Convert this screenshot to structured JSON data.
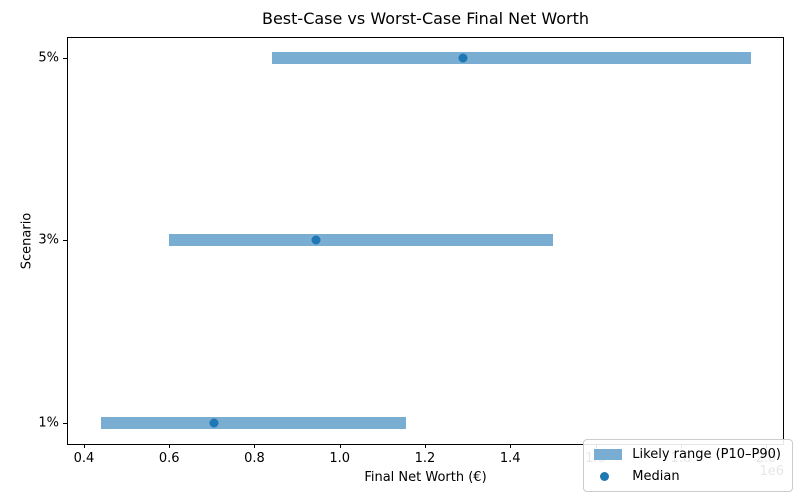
{
  "chart_data": {
    "type": "bar",
    "orientation": "horizontal",
    "title": "Best-Case vs Worst-Case Final Net Worth",
    "xlabel": "Final Net Worth (€)",
    "ylabel": "Scenario",
    "x_offset_label": "1e6",
    "categories": [
      "5%",
      "3%",
      "1%"
    ],
    "series": [
      {
        "name": "Likely range (P10–P90)",
        "type": "range",
        "p10": [
          840000,
          600000,
          440000
        ],
        "p90": [
          1965000,
          1500000,
          1155000
        ],
        "color": "#79ADD2"
      },
      {
        "name": "Median",
        "type": "point",
        "values": [
          1290000,
          945000,
          705000
        ],
        "color": "#1F77B4"
      }
    ],
    "xlim": [
      362600,
      2039800
    ],
    "xticks": [
      400000,
      600000,
      800000,
      1000000,
      1200000,
      1400000,
      1600000,
      1800000,
      2000000
    ],
    "xtick_labels": [
      "0.4",
      "0.6",
      "0.8",
      "1.0",
      "1.2",
      "1.4",
      "1.6",
      "1.8",
      "2.0"
    ],
    "grid": false,
    "legend_position": "lower right",
    "colors": {
      "range_bar": "#79ADD2",
      "median_marker": "#1F77B4",
      "spine": "#000000",
      "legend_border": "#CCCCCC",
      "background": "#FFFFFF"
    }
  }
}
